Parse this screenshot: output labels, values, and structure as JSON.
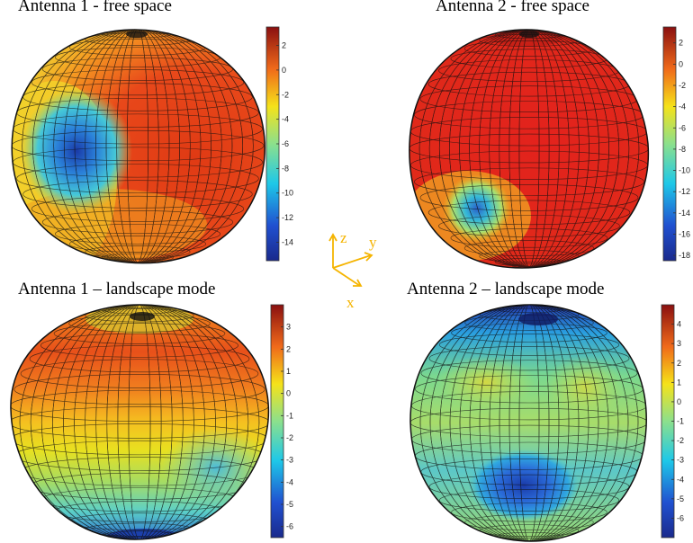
{
  "panels": [
    {
      "title": "Antenna 1 - free space",
      "colorbar": {
        "min": -15.5,
        "max": 3.5,
        "ticks": [
          "2",
          "0",
          "-2",
          "-4",
          "-6",
          "-8",
          "-10",
          "-12",
          "-14"
        ]
      }
    },
    {
      "title": "Antenna 2 - free space",
      "colorbar": {
        "min": -18.5,
        "max": 3.5,
        "ticks": [
          "2",
          "0",
          "-2",
          "-4",
          "-6",
          "-8",
          "-10",
          "-12",
          "-14",
          "-16",
          "-18"
        ]
      }
    },
    {
      "title": "Antenna 1 – landscape mode",
      "colorbar": {
        "min": -6.5,
        "max": 4.0,
        "ticks": [
          "3",
          "2",
          "1",
          "0",
          "-1",
          "-2",
          "-3",
          "-4",
          "-5",
          "-6"
        ]
      }
    },
    {
      "title": "Antenna 2 – landscape mode",
      "colorbar": {
        "min": -7.0,
        "max": 5.0,
        "ticks": [
          "4",
          "3",
          "2",
          "1",
          "0",
          "-1",
          "-2",
          "-3",
          "-4",
          "-5",
          "-6"
        ]
      }
    }
  ],
  "axes_triad": {
    "labels": {
      "z": "z",
      "y": "y",
      "x": "x"
    },
    "color": "#f5b400"
  },
  "colormap": "jet"
}
